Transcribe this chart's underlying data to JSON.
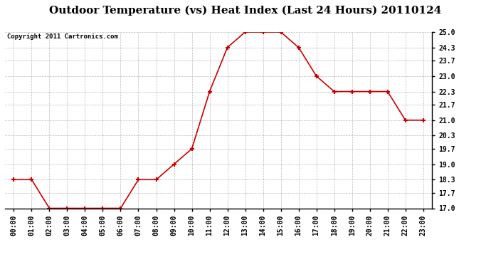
{
  "title": "Outdoor Temperature (vs) Heat Index (Last 24 Hours) 20110124",
  "copyright": "Copyright 2011 Cartronics.com",
  "hours": [
    "00:00",
    "01:00",
    "02:00",
    "03:00",
    "04:00",
    "05:00",
    "06:00",
    "07:00",
    "08:00",
    "09:00",
    "10:00",
    "11:00",
    "12:00",
    "13:00",
    "14:00",
    "15:00",
    "16:00",
    "17:00",
    "18:00",
    "19:00",
    "20:00",
    "21:00",
    "22:00",
    "23:00"
  ],
  "values": [
    18.3,
    18.3,
    17.0,
    17.0,
    17.0,
    17.0,
    17.0,
    18.3,
    18.3,
    19.0,
    19.7,
    22.3,
    24.3,
    25.0,
    25.0,
    25.0,
    24.3,
    23.0,
    22.3,
    22.3,
    22.3,
    22.3,
    21.0,
    21.0
  ],
  "line_color": "#cc0000",
  "marker": "+",
  "marker_size": 5,
  "marker_color": "#cc0000",
  "ylim_min": 17.0,
  "ylim_max": 25.0,
  "yticks": [
    17.0,
    17.7,
    18.3,
    19.0,
    19.7,
    20.3,
    21.0,
    21.7,
    22.3,
    23.0,
    23.7,
    24.3,
    25.0
  ],
  "ytick_labels": [
    "17.0",
    "17.7",
    "18.3",
    "19.0",
    "19.7",
    "20.3",
    "21.0",
    "21.7",
    "22.3",
    "23.0",
    "23.7",
    "24.3",
    "25.0"
  ],
  "background_color": "#ffffff",
  "grid_color": "#aaaaaa",
  "title_fontsize": 11,
  "copyright_fontsize": 6.5,
  "tick_fontsize": 7,
  "marker_linewidth": 1.5
}
